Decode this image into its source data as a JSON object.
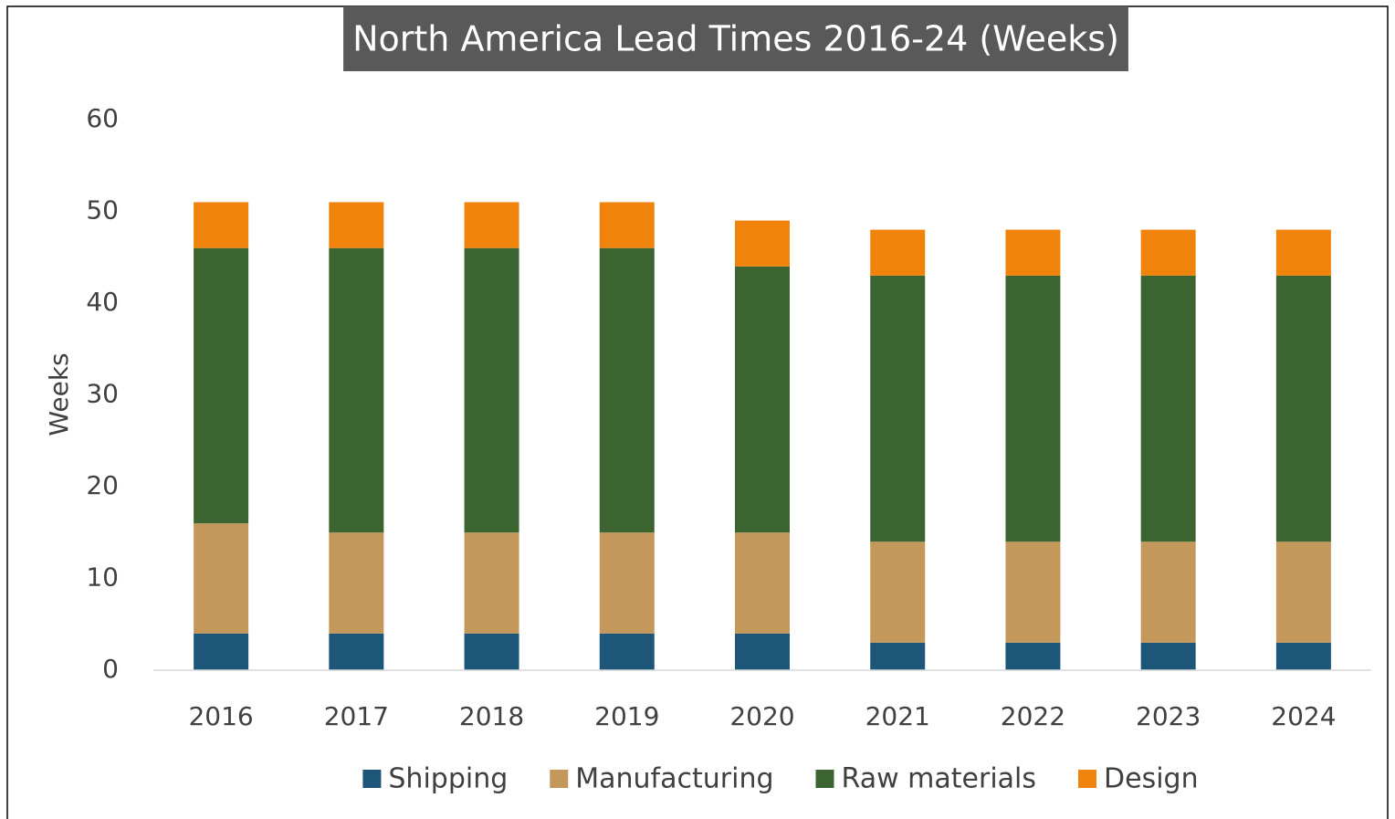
{
  "chart_data": {
    "type": "stacked_bar",
    "title": "North America Lead Times 2016-24 (Weeks)",
    "y_label": "Weeks",
    "categories": [
      "2016",
      "2017",
      "2018",
      "2019",
      "2020",
      "2021",
      "2022",
      "2023",
      "2024"
    ],
    "series": [
      {
        "name": "Shipping",
        "color": "#1d5679",
        "values": [
          4,
          4,
          4,
          4,
          4,
          3,
          3,
          3,
          3
        ]
      },
      {
        "name": "Manufacturing",
        "color": "#c4985a",
        "values": [
          12,
          11,
          11,
          11,
          11,
          11,
          11,
          11,
          11
        ]
      },
      {
        "name": "Raw materials",
        "color": "#3b6431",
        "values": [
          30,
          31,
          31,
          31,
          29,
          29,
          29,
          29,
          29
        ]
      },
      {
        "name": "Design",
        "color": "#f0830b",
        "values": [
          5,
          5,
          5,
          5,
          5,
          5,
          5,
          5,
          5
        ]
      }
    ],
    "ylim": [
      0,
      60
    ],
    "yticks": [
      0,
      10,
      20,
      30,
      40,
      50,
      60
    ],
    "grid": false,
    "legend": "bottom"
  }
}
